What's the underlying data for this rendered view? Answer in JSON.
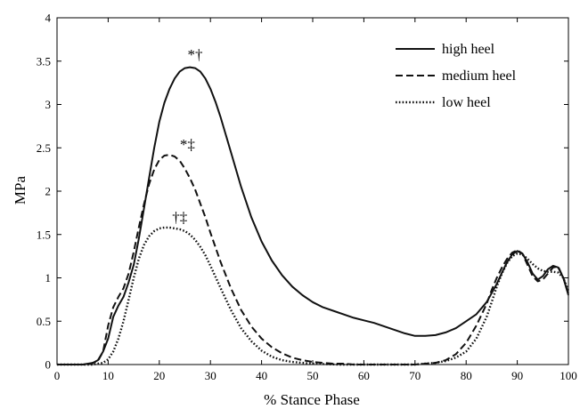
{
  "chart_data": {
    "type": "line",
    "xlabel": "% Stance Phase",
    "ylabel": "MPa",
    "xlim": [
      0,
      100
    ],
    "ylim": [
      0,
      4
    ],
    "xticks": [
      "0",
      "10",
      "20",
      "30",
      "40",
      "50",
      "60",
      "70",
      "80",
      "90",
      "100"
    ],
    "yticks": [
      "0",
      "0.5",
      "1",
      "1.5",
      "2",
      "2.5",
      "3",
      "3.5",
      "4"
    ],
    "legend_position": "top-right",
    "grid": false,
    "series": [
      {
        "name": "high heel",
        "style": "solid",
        "x": [
          0,
          5,
          7,
          8,
          9,
          10,
          11,
          12,
          13,
          14,
          15,
          16,
          17,
          18,
          19,
          20,
          21,
          22,
          23,
          24,
          25,
          26,
          27,
          28,
          29,
          30,
          31,
          32,
          34,
          36,
          38,
          40,
          42,
          44,
          46,
          48,
          50,
          52,
          55,
          58,
          60,
          62,
          65,
          68,
          70,
          72,
          74,
          76,
          78,
          80,
          82,
          84,
          86,
          87,
          88,
          89,
          90,
          91,
          92,
          93,
          94,
          95,
          96,
          97,
          98,
          99,
          100
        ],
        "y": [
          0,
          0,
          0.02,
          0.05,
          0.15,
          0.3,
          0.55,
          0.68,
          0.78,
          0.95,
          1.15,
          1.45,
          1.8,
          2.15,
          2.5,
          2.8,
          3.02,
          3.18,
          3.3,
          3.38,
          3.42,
          3.43,
          3.42,
          3.38,
          3.3,
          3.18,
          3.03,
          2.85,
          2.45,
          2.05,
          1.7,
          1.42,
          1.2,
          1.03,
          0.9,
          0.8,
          0.72,
          0.66,
          0.6,
          0.54,
          0.51,
          0.48,
          0.42,
          0.36,
          0.33,
          0.33,
          0.34,
          0.37,
          0.42,
          0.5,
          0.58,
          0.72,
          0.93,
          1.06,
          1.18,
          1.27,
          1.31,
          1.28,
          1.18,
          1.05,
          0.98,
          1.02,
          1.1,
          1.14,
          1.12,
          1.0,
          0.8
        ]
      },
      {
        "name": "medium heel",
        "style": "dashed",
        "x": [
          0,
          6,
          8,
          9,
          10,
          11,
          12,
          13,
          14,
          15,
          16,
          17,
          18,
          19,
          20,
          21,
          22,
          23,
          24,
          25,
          26,
          27,
          28,
          29,
          30,
          32,
          34,
          36,
          38,
          40,
          42,
          44,
          46,
          48,
          50,
          52,
          54,
          56,
          58,
          60,
          65,
          70,
          72,
          74,
          76,
          78,
          80,
          82,
          84,
          85,
          86,
          87,
          88,
          89,
          90,
          91,
          92,
          93,
          94,
          95,
          96,
          97,
          98,
          99,
          100
        ],
        "y": [
          0,
          0,
          0.04,
          0.15,
          0.45,
          0.66,
          0.78,
          0.88,
          1.05,
          1.3,
          1.58,
          1.85,
          2.08,
          2.25,
          2.36,
          2.41,
          2.42,
          2.4,
          2.35,
          2.26,
          2.15,
          2.02,
          1.86,
          1.7,
          1.52,
          1.18,
          0.88,
          0.63,
          0.44,
          0.3,
          0.2,
          0.13,
          0.08,
          0.05,
          0.03,
          0.02,
          0.01,
          0.01,
          0,
          0,
          0,
          0,
          0.01,
          0.02,
          0.05,
          0.12,
          0.25,
          0.45,
          0.7,
          0.86,
          1.0,
          1.12,
          1.22,
          1.29,
          1.32,
          1.28,
          1.15,
          1.02,
          0.96,
          0.98,
          1.05,
          1.12,
          1.13,
          1.0,
          0.82
        ]
      },
      {
        "name": "low heel",
        "style": "dotted",
        "x": [
          0,
          7,
          9,
          10,
          11,
          12,
          13,
          14,
          15,
          16,
          17,
          18,
          19,
          20,
          21,
          22,
          23,
          24,
          25,
          26,
          27,
          28,
          29,
          30,
          32,
          34,
          36,
          38,
          40,
          42,
          44,
          46,
          48,
          50,
          55,
          60,
          65,
          70,
          72,
          74,
          76,
          78,
          80,
          82,
          84,
          85,
          86,
          87,
          88,
          89,
          90,
          91,
          92,
          93,
          94,
          95,
          96,
          97,
          98,
          99,
          100
        ],
        "y": [
          0,
          0,
          0.02,
          0.06,
          0.15,
          0.3,
          0.5,
          0.75,
          1.0,
          1.22,
          1.38,
          1.48,
          1.54,
          1.57,
          1.58,
          1.58,
          1.57,
          1.56,
          1.54,
          1.5,
          1.44,
          1.36,
          1.26,
          1.14,
          0.88,
          0.63,
          0.42,
          0.27,
          0.16,
          0.09,
          0.05,
          0.03,
          0.02,
          0.01,
          0,
          0,
          0,
          0,
          0.01,
          0.02,
          0.04,
          0.08,
          0.15,
          0.3,
          0.55,
          0.72,
          0.9,
          1.05,
          1.17,
          1.25,
          1.28,
          1.27,
          1.22,
          1.16,
          1.11,
          1.08,
          1.07,
          1.07,
          1.06,
          1.0,
          0.85
        ]
      }
    ],
    "annotations": [
      {
        "text": "*†",
        "x": 27,
        "y": 3.52
      },
      {
        "text": "*‡",
        "x": 25.5,
        "y": 2.48
      },
      {
        "text": "†‡",
        "x": 24,
        "y": 1.64
      }
    ]
  }
}
